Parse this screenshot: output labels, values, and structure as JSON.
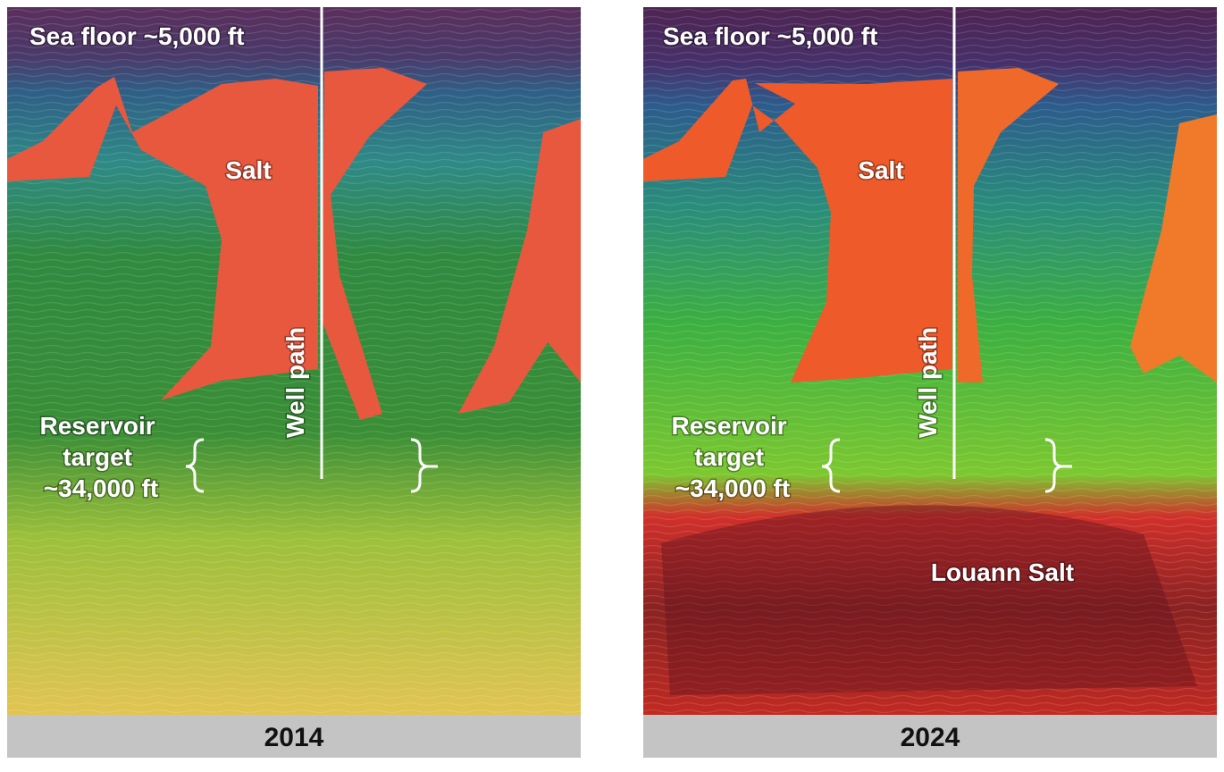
{
  "panels": [
    {
      "sea_floor_label": "Sea floor ~5,000 ft",
      "salt_label": "Salt",
      "well_path_label": "Well path",
      "reservoir_label": [
        "Reservoir",
        "target",
        "~34,000 ft"
      ],
      "year": "2014"
    },
    {
      "sea_floor_label": "Sea floor ~5,000 ft",
      "salt_label": "Salt",
      "well_path_label": "Well path",
      "reservoir_label": [
        "Reservoir",
        "target",
        "~34,000 ft"
      ],
      "louann_label": "Louann Salt",
      "year": "2024"
    }
  ]
}
